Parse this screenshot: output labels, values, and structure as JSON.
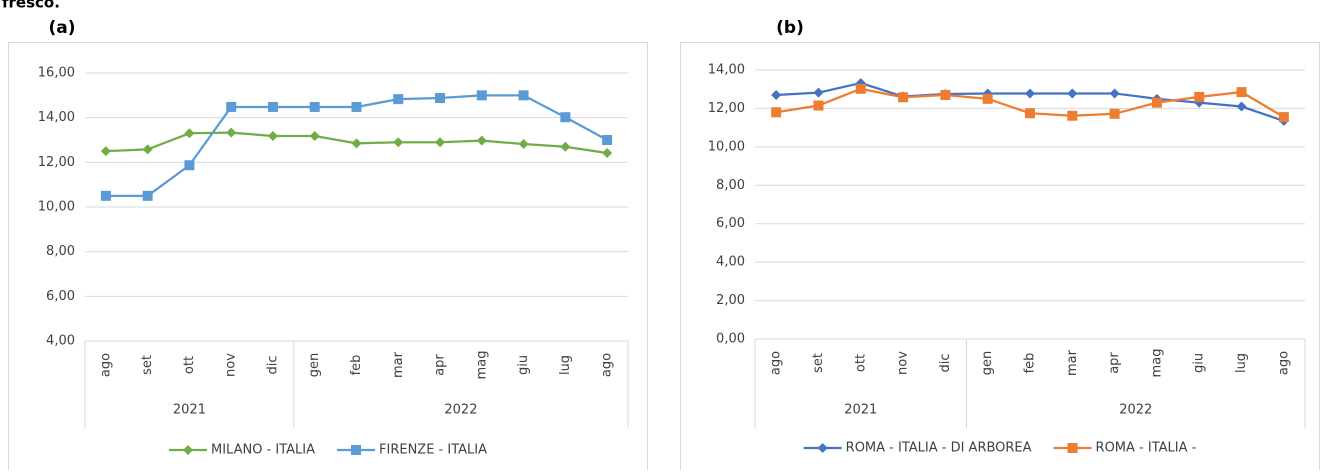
{
  "caption_fragment": "fresco.",
  "chart_data": [
    {
      "type": "line",
      "panel_label": "(a)",
      "categories": [
        "ago",
        "set",
        "ott",
        "nov",
        "dic",
        "gen",
        "feb",
        "mar",
        "apr",
        "mag",
        "giu",
        "lug",
        "ago"
      ],
      "groups": [
        {
          "label": "2021",
          "count": 5
        },
        {
          "label": "2022",
          "count": 8
        }
      ],
      "ylim": [
        4,
        16
      ],
      "yticks": [
        {
          "value": 4,
          "label": "4,00"
        },
        {
          "value": 6,
          "label": "6,00"
        },
        {
          "value": 8,
          "label": "8,00"
        },
        {
          "value": 10,
          "label": "10,00"
        },
        {
          "value": 12,
          "label": "12,00"
        },
        {
          "value": 14,
          "label": "14,00"
        },
        {
          "value": 16,
          "label": "16,00"
        }
      ],
      "grid": true,
      "legend": "bottom",
      "series": [
        {
          "name": "MILANO - ITALIA",
          "color": "#70ad47",
          "marker": "diamond",
          "values": [
            12.5,
            12.58,
            13.3,
            13.33,
            13.18,
            13.18,
            12.85,
            12.9,
            12.9,
            12.97,
            12.82,
            12.7,
            12.42
          ]
        },
        {
          "name": "FIRENZE - ITALIA",
          "color": "#5b9bd5",
          "marker": "square",
          "values": [
            10.5,
            10.5,
            11.87,
            14.48,
            14.48,
            14.48,
            14.48,
            14.83,
            14.88,
            15.0,
            15.0,
            14.02,
            13.0
          ]
        }
      ]
    },
    {
      "type": "line",
      "panel_label": "(b)",
      "categories": [
        "ago",
        "set",
        "ott",
        "nov",
        "dic",
        "gen",
        "feb",
        "mar",
        "apr",
        "mag",
        "giu",
        "lug",
        "ago"
      ],
      "groups": [
        {
          "label": "2021",
          "count": 5
        },
        {
          "label": "2022",
          "count": 8
        }
      ],
      "ylim": [
        0,
        14
      ],
      "yticks": [
        {
          "value": 0,
          "label": "0,00"
        },
        {
          "value": 2,
          "label": "2,00"
        },
        {
          "value": 4,
          "label": "4,00"
        },
        {
          "value": 6,
          "label": "6,00"
        },
        {
          "value": 8,
          "label": "8,00"
        },
        {
          "value": 10,
          "label": "10,00"
        },
        {
          "value": 12,
          "label": "12,00"
        },
        {
          "value": 14,
          "label": "14,00"
        }
      ],
      "grid": true,
      "legend": "bottom",
      "series": [
        {
          "name": "ROMA - ITALIA - DI ARBOREA",
          "color": "#4472c4",
          "marker": "diamond",
          "values": [
            12.7,
            12.82,
            13.32,
            12.62,
            12.75,
            12.78,
            12.78,
            12.78,
            12.78,
            12.5,
            12.3,
            12.1,
            11.35
          ]
        },
        {
          "name": "ROMA - ITALIA -",
          "color": "#ed7d31",
          "marker": "square",
          "values": [
            11.8,
            12.15,
            13.02,
            12.58,
            12.7,
            12.5,
            11.75,
            11.62,
            11.72,
            12.3,
            12.6,
            12.85,
            11.55
          ]
        }
      ]
    }
  ]
}
